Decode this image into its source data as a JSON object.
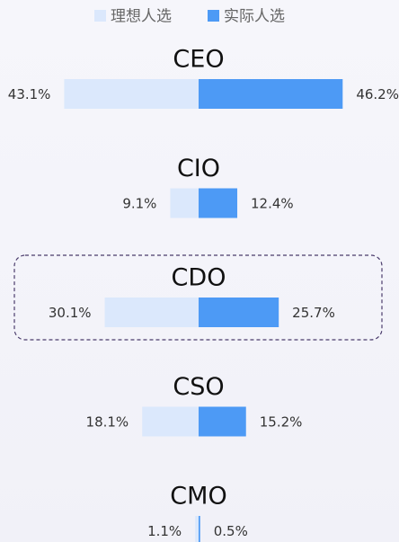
{
  "chart_data": {
    "type": "butterfly-bar",
    "categories": [
      "CEO",
      "CIO",
      "CDO",
      "CSO",
      "CMO"
    ],
    "series": [
      {
        "name": "理想人选",
        "color": "#dbe8fc",
        "values": [
          43.1,
          9.1,
          30.1,
          18.1,
          1.1
        ],
        "value_labels": [
          "43.1%",
          "9.1%",
          "30.1%",
          "18.1%",
          "1.1%"
        ]
      },
      {
        "name": "实际人选",
        "color": "#4d9af5",
        "values": [
          46.2,
          12.4,
          25.7,
          15.2,
          0.5
        ],
        "value_labels": [
          "46.2%",
          "12.4%",
          "25.7%",
          "15.2%",
          "0.5%"
        ]
      }
    ]
  }
}
